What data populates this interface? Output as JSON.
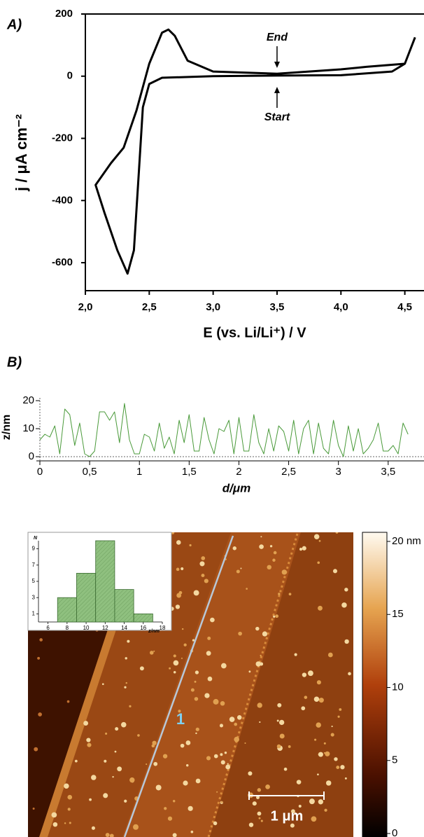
{
  "chart_data": [
    {
      "type": "line",
      "panel_label": "A)",
      "y_label": "j / μA cm⁻²",
      "x_label": "E (vs. Li/Li⁺) / V",
      "annotations": [
        "End",
        "Start"
      ],
      "color": "#000000",
      "x": [
        4.58,
        4.5,
        4.2,
        4.0,
        3.5,
        3.0,
        2.8,
        2.7,
        2.65,
        2.6,
        2.5,
        2.4,
        2.3,
        2.2,
        2.08,
        2.15,
        2.25,
        2.33,
        2.38,
        2.42,
        2.45,
        2.5,
        2.6,
        3.0,
        3.5,
        4.0,
        4.4,
        4.5,
        4.58
      ],
      "values": [
        125,
        40,
        30,
        22,
        8,
        15,
        50,
        130,
        150,
        140,
        40,
        -110,
        -230,
        -280,
        -350,
        -440,
        -560,
        -635,
        -560,
        -300,
        -100,
        -25,
        -5,
        0,
        2,
        3,
        15,
        40,
        125
      ],
      "xlim": [
        2.0,
        4.65
      ],
      "ylim": [
        -690,
        200
      ],
      "xticks": [
        {
          "value": 2.0,
          "label": "2,0"
        },
        {
          "value": 2.5,
          "label": "2,5"
        },
        {
          "value": 3.0,
          "label": "3,0"
        },
        {
          "value": 3.5,
          "label": "3,5"
        },
        {
          "value": 4.0,
          "label": "4,0"
        },
        {
          "value": 4.5,
          "label": "4,5"
        }
      ],
      "yticks": [
        200,
        0,
        -200,
        -400,
        -600
      ]
    },
    {
      "type": "line",
      "panel_label": "B)",
      "y_label": "z/nm",
      "x_label": "d/μm",
      "color": "#4a9a3a",
      "x": [
        0,
        0.05,
        0.1,
        0.15,
        0.2,
        0.25,
        0.3,
        0.35,
        0.4,
        0.45,
        0.5,
        0.55,
        0.6,
        0.65,
        0.7,
        0.75,
        0.8,
        0.85,
        0.9,
        0.95,
        1.0,
        1.05,
        1.1,
        1.15,
        1.2,
        1.25,
        1.3,
        1.35,
        1.4,
        1.45,
        1.5,
        1.55,
        1.6,
        1.65,
        1.7,
        1.75,
        1.8,
        1.85,
        1.9,
        1.95,
        2.0,
        2.05,
        2.1,
        2.15,
        2.2,
        2.25,
        2.3,
        2.35,
        2.4,
        2.45,
        2.5,
        2.55,
        2.6,
        2.65,
        2.7,
        2.75,
        2.8,
        2.85,
        2.9,
        2.95,
        3.0,
        3.05,
        3.1,
        3.15,
        3.2,
        3.25,
        3.3,
        3.35,
        3.4,
        3.45,
        3.5,
        3.55,
        3.6,
        3.65,
        3.7
      ],
      "values": [
        6,
        8,
        7,
        11,
        1,
        17,
        15,
        4,
        12,
        1,
        0,
        2,
        16,
        16,
        13,
        16,
        5,
        19,
        6,
        1,
        1,
        8,
        7,
        2,
        12,
        3,
        7,
        1,
        13,
        5,
        15,
        2,
        2,
        14,
        6,
        1,
        10,
        9,
        13,
        1,
        14,
        2,
        2,
        15,
        5,
        1,
        10,
        2,
        11,
        9,
        2,
        13,
        1,
        10,
        13,
        1,
        12,
        3,
        1,
        13,
        4,
        0,
        11,
        2,
        10,
        1,
        3,
        6,
        12,
        2,
        2,
        4,
        1,
        12,
        8
      ],
      "xlim": [
        0,
        3.86
      ],
      "ylim": [
        0,
        20
      ],
      "xticks": [
        0,
        {
          "value": 0.5,
          "label": "0,5"
        },
        1,
        {
          "value": 1.5,
          "label": "1,5"
        },
        2,
        {
          "value": 2.5,
          "label": "2,5"
        },
        3,
        {
          "value": 3.5,
          "label": "3,5"
        }
      ],
      "yticks": [
        0,
        10,
        20
      ]
    },
    {
      "type": "histogram",
      "y_label": "N",
      "x_label": "z/nm",
      "color": "#8fc07f",
      "bins": [
        7,
        9,
        11,
        13,
        15,
        17
      ],
      "values": [
        3,
        6,
        10,
        4,
        1
      ],
      "xlim": [
        5,
        18
      ],
      "ylim": [
        0,
        10
      ],
      "xticks": [
        6,
        8,
        10,
        12,
        14,
        16,
        18
      ],
      "yticks": [
        1,
        3,
        5,
        7,
        9
      ]
    },
    {
      "type": "colorbar",
      "ylim": [
        0,
        20
      ],
      "yticks": [
        0,
        5,
        10,
        15,
        {
          "value": 20,
          "label": "20 nm"
        }
      ]
    }
  ],
  "image": {
    "line_label": "1",
    "scale_bar": "1 μm"
  }
}
